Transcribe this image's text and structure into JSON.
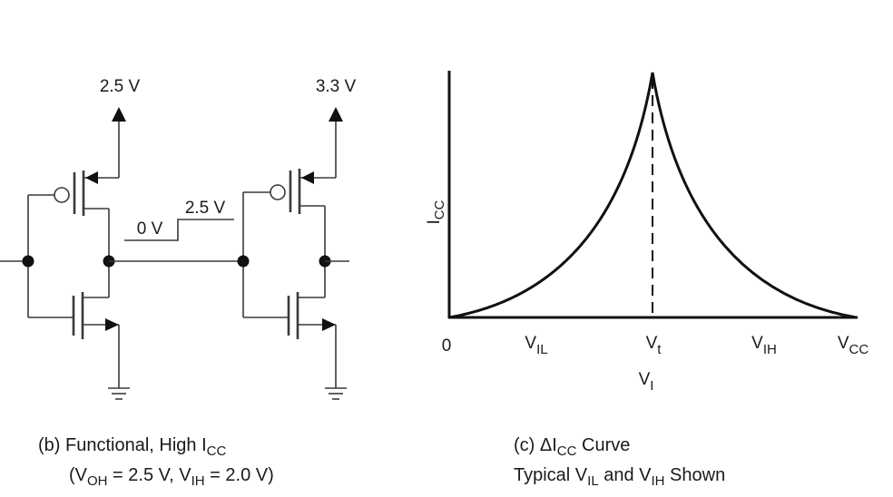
{
  "circuit": {
    "supply_left": "2.5 V",
    "supply_right": "3.3 V",
    "pulse_low": "0 V",
    "pulse_high": "2.5 V",
    "caption": {
      "line1_prefix": "(b) Functional, High I",
      "line1_sub": "CC",
      "line2_a": "(V",
      "line2_a_sub": "OH",
      "line2_b": " = 2.5 V, V",
      "line2_b_sub": "IH",
      "line2_c": " = 2.0 V)"
    }
  },
  "curve": {
    "y_label": "I",
    "y_label_sub": "CC",
    "x_label": "V",
    "x_label_sub": "I",
    "ticks": {
      "zero": "0",
      "vil": "V",
      "vil_sub": "IL",
      "vt": "V",
      "vt_sub": "t",
      "vih": "V",
      "vih_sub": "IH",
      "vcc": "V",
      "vcc_sub": "CC"
    },
    "caption": {
      "line1_prefix": "(c) ΔI",
      "line1_sub": "CC",
      "line1_suffix": " Curve",
      "line2_a": "Typical V",
      "line2_a_sub": "IL",
      "line2_b": " and V",
      "line2_b_sub": "IH",
      "line2_c": " Shown"
    }
  }
}
